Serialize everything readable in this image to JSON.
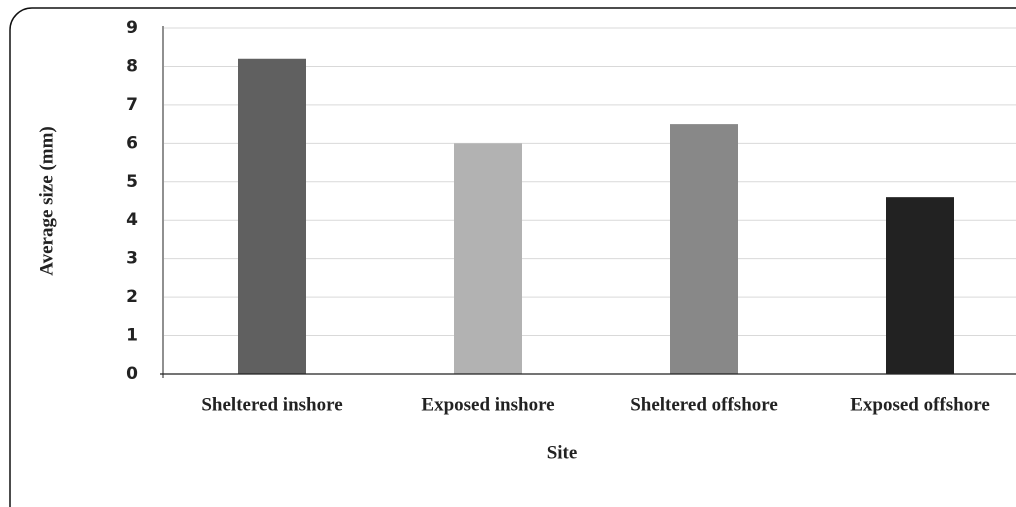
{
  "chart_data": {
    "type": "bar",
    "x_label": "Site",
    "y_label": "Average size (mm)",
    "categories": [
      "Sheltered inshore",
      "Exposed inshore",
      "Sheltered offshore",
      "Exposed offshore"
    ],
    "values": [
      8.2,
      6.0,
      6.5,
      4.6
    ],
    "colors": [
      "#606060",
      "#b2b2b2",
      "#888888",
      "#222222"
    ],
    "ylim": [
      0,
      9
    ],
    "yticks": [
      0,
      1,
      2,
      3,
      4,
      5,
      6,
      7,
      8,
      9
    ],
    "grid": true
  }
}
